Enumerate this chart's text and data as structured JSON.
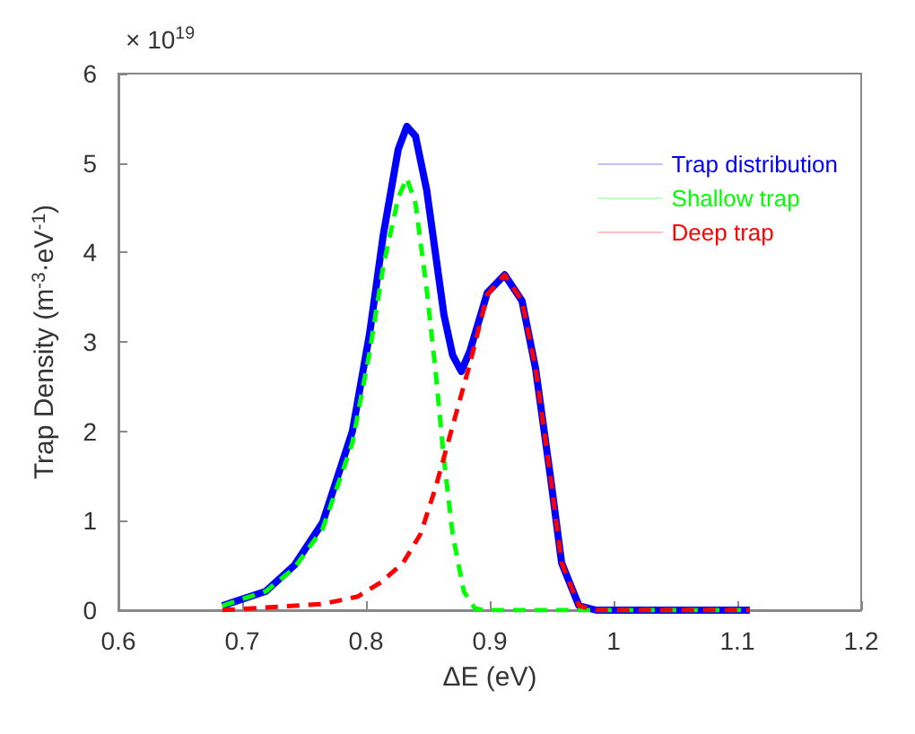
{
  "chart_data": {
    "type": "line",
    "xlabel": "ΔE (eV)",
    "ylabel": "Trap Density (m$^{-3}$·eV$^{-1}$)",
    "annotations": [
      "× 10$^{19}$"
    ],
    "xlim": [
      0.6,
      1.2
    ],
    "xticks": [
      0.6,
      0.7,
      0.8,
      0.9,
      1,
      1.1,
      1.2
    ],
    "ylim": [
      0,
      6
    ],
    "yticks": [
      0,
      1,
      2,
      3,
      4,
      5,
      6
    ],
    "grid": false,
    "legend": "top right",
    "marker": "none",
    "series": [
      {
        "name": "Trap distribution",
        "color": "#0000ff",
        "line_style": "solid",
        "x": [
          0.684,
          0.719,
          0.742,
          0.765,
          0.789,
          0.803,
          0.814,
          0.826,
          0.833,
          0.84,
          0.849,
          0.856,
          0.863,
          0.87,
          0.877,
          0.884,
          0.898,
          0.912,
          0.926,
          0.937,
          0.949,
          0.958,
          0.972,
          0.986,
          1.11
        ],
        "values": [
          0.05,
          0.21,
          0.5,
          0.98,
          2.0,
          3.1,
          4.2,
          5.15,
          5.41,
          5.3,
          4.7,
          4.0,
          3.3,
          2.85,
          2.67,
          2.9,
          3.55,
          3.75,
          3.46,
          2.7,
          1.49,
          0.53,
          0.05,
          0,
          0
        ]
      },
      {
        "name": "Shallow trap",
        "color": "#00ff00",
        "line_style": "dashed",
        "x": [
          0.684,
          0.719,
          0.742,
          0.765,
          0.789,
          0.803,
          0.814,
          0.826,
          0.833,
          0.84,
          0.849,
          0.856,
          0.863,
          0.87,
          0.879,
          0.888,
          0.895,
          1.11
        ],
        "values": [
          0.05,
          0.21,
          0.47,
          0.91,
          1.87,
          2.89,
          3.85,
          4.61,
          4.83,
          4.55,
          3.59,
          2.7,
          1.68,
          0.85,
          0.21,
          0.02,
          0,
          0
        ]
      },
      {
        "name": "Deep trap",
        "color": "#ff0000",
        "line_style": "dashed",
        "x": [
          0.684,
          0.765,
          0.793,
          0.812,
          0.83,
          0.844,
          0.856,
          0.87,
          0.884,
          0.898,
          0.912,
          0.926,
          0.937,
          0.949,
          0.958,
          0.972,
          0.986,
          1.11
        ],
        "values": [
          0,
          0.07,
          0.15,
          0.31,
          0.53,
          0.85,
          1.36,
          2.06,
          2.76,
          3.53,
          3.75,
          3.46,
          2.7,
          1.49,
          0.53,
          0.05,
          0,
          0
        ]
      }
    ]
  }
}
